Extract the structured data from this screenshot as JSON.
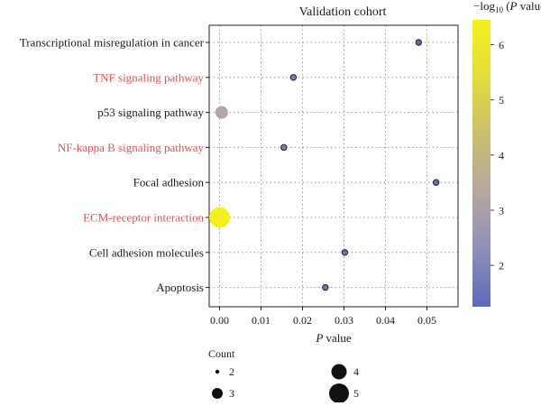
{
  "chart_data": {
    "type": "scatter",
    "title": "Validation cohort",
    "xlabel": "P value",
    "x_ticks": [
      "0.00",
      "0.01",
      "0.02",
      "0.03",
      "0.04",
      "0.05"
    ],
    "xlim": [
      -0.0025,
      0.0575
    ],
    "categories": [
      "Transcriptional misregulation in cancer",
      "TNF signaling pathway",
      "p53 signaling pathway",
      "NF-kappa B signaling pathway",
      "Focal adhesion",
      "ECM-receptor interaction",
      "Cell adhesion molecules",
      "Apoptosis"
    ],
    "highlighted_categories": [
      "TNF signaling pathway",
      "NF-kappa B signaling pathway",
      "ECM-receptor interaction"
    ],
    "highlight_color": "#e8504f",
    "points": [
      {
        "term": "Transcriptional misregulation in cancer",
        "p_value": 0.048,
        "neg_log10_p": 1.32,
        "count": 2
      },
      {
        "term": "TNF signaling pathway",
        "p_value": 0.0178,
        "neg_log10_p": 1.75,
        "count": 2
      },
      {
        "term": "p53 signaling pathway",
        "p_value": 0.0005,
        "neg_log10_p": 3.3,
        "count": 3
      },
      {
        "term": "NF-kappa B signaling pathway",
        "p_value": 0.0155,
        "neg_log10_p": 1.81,
        "count": 2
      },
      {
        "term": "Focal adhesion",
        "p_value": 0.0522,
        "neg_log10_p": 1.28,
        "count": 2
      },
      {
        "term": "ECM-receptor interaction",
        "p_value": 4e-07,
        "neg_log10_p": 6.4,
        "count": 5
      },
      {
        "term": "Cell adhesion molecules",
        "p_value": 0.0302,
        "neg_log10_p": 1.52,
        "count": 2
      },
      {
        "term": "Apoptosis",
        "p_value": 0.0255,
        "neg_log10_p": 1.59,
        "count": 2
      }
    ],
    "colorbar": {
      "title_prefix": "−log",
      "title_sub": "10",
      "title_suffix": " (",
      "title_p": "P",
      "title_end": " value)",
      "range": [
        1.25,
        6.45
      ],
      "ticks": [
        2,
        3,
        4,
        5,
        6
      ],
      "tick_labels": [
        "2",
        "3",
        "4",
        "5",
        "6"
      ],
      "colors": [
        "#5b6bb8",
        "#8f8fb8",
        "#b5a7a0",
        "#c9bf6e",
        "#e3dc3c",
        "#f5f01e"
      ]
    },
    "size_legend": {
      "title": "Count",
      "items": [
        {
          "value": 2,
          "label": "2"
        },
        {
          "value": 3,
          "label": "3"
        },
        {
          "value": 4,
          "label": "4"
        },
        {
          "value": 5,
          "label": "5"
        }
      ]
    },
    "grid": true,
    "grid_style": "dotted"
  }
}
